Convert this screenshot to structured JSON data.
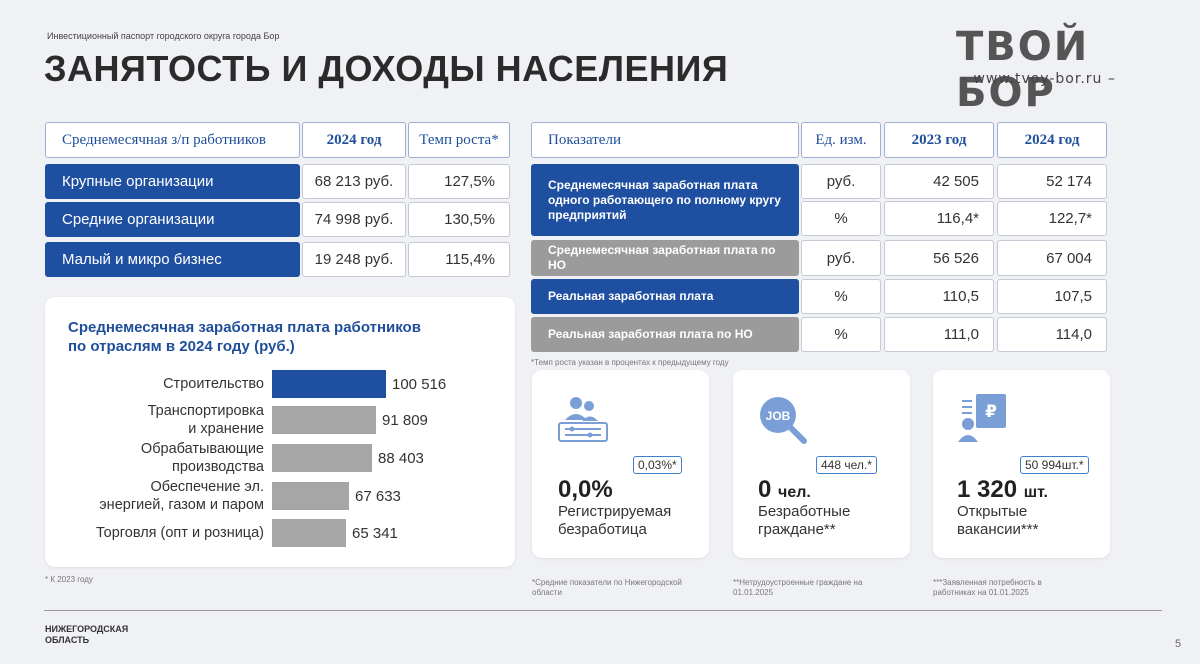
{
  "header": {
    "subtitle": "Инвестиционный паспорт городского округа города Бор",
    "title": "ЗАНЯТОСТЬ И ДОХОДЫ НАСЕЛЕНИЯ",
    "logo_text": "ТВОЙ БОР",
    "logo_url": "– www.tvoy-bor.ru –"
  },
  "salary_table": {
    "headers": [
      "Среднемесячная з/п работников",
      "2024 год",
      "Темп роста*"
    ],
    "rows": [
      {
        "label": "Крупные организации",
        "salary": "68 213 руб.",
        "growth": "127,5%"
      },
      {
        "label": "Средние организации",
        "salary": "74 998 руб.",
        "growth": "130,5%"
      },
      {
        "label": "Малый и микро бизнес",
        "salary": "19 248 руб.",
        "growth": "115,4%"
      }
    ]
  },
  "indicators_table": {
    "headers": [
      "Показатели",
      "Ед. изм.",
      "2023 год",
      "2024 год"
    ],
    "group1_label": "Среднемесячная заработная плата одного работающего по полному кругу предприятий",
    "group1_rows": [
      {
        "unit": "руб.",
        "y2023": "42 505",
        "y2024": "52 174"
      },
      {
        "unit": "%",
        "y2023": "116,4*",
        "y2024": "122,7*"
      }
    ],
    "rows": [
      {
        "label": "Среднемесячная заработная плата по НО",
        "unit": "руб.",
        "y2023": "56 526",
        "y2024": "67 004"
      },
      {
        "label": "Реальная заработная плата",
        "unit": "%",
        "y2023": "110,5",
        "y2024": "107,5"
      },
      {
        "label": "Реальная заработная плата по НО",
        "unit": "%",
        "y2023": "111,0",
        "y2024": "114,0"
      }
    ],
    "footnote": "*Темп роста указан в процентах к предыдущему году"
  },
  "chart_data": {
    "type": "bar",
    "title": "Среднемесячная заработная плата работников по отраслям в 2024 году (руб.)",
    "categories": [
      "Строительство",
      "Транспортировка и хранение",
      "Обрабатывающие производства",
      "Обеспечение эл. энергией, газом и паром",
      "Торговля (опт и розница)"
    ],
    "category_lines": [
      [
        "Строительство"
      ],
      [
        "Транспортировка",
        "и хранение"
      ],
      [
        "Обрабатывающие",
        "производства"
      ],
      [
        "Обеспечение эл.",
        "энергией, газом и паром"
      ],
      [
        "Торговля (опт и розница)"
      ]
    ],
    "values": [
      100516,
      91809,
      88403,
      67633,
      65341
    ],
    "value_labels": [
      "100 516",
      "91 809",
      "88 403",
      "67 633",
      "65 341"
    ],
    "colors": [
      "#1e4fa1",
      "#a6a6a6",
      "#a6a6a6",
      "#a6a6a6",
      "#a6a6a6"
    ],
    "orientation": "horizontal"
  },
  "chart_footnote": "* К 2023 году",
  "kpis": [
    {
      "icon": "people-settings-icon",
      "badge": "0,03%*",
      "value": "0,0%",
      "unit": "",
      "label1": "Регистрируемая",
      "label2": "безработица",
      "footnote1": "*Средние показатели по Нижегородской",
      "footnote2": "области"
    },
    {
      "icon": "job-search-icon",
      "badge": "448 чел.*",
      "value": "0",
      "unit": "чел.",
      "label1": "Безработные",
      "label2": "граждане**",
      "footnote1": "**Нетрудоустроенные граждане на",
      "footnote2": "01.01.2025"
    },
    {
      "icon": "vacancy-document-icon",
      "badge": "50 994шт.*",
      "value": "1 320",
      "unit": "шт.",
      "label1": "Открытые",
      "label2": "вакансии***",
      "footnote1": "***Заявленная потребность в",
      "footnote2": "работниках на 01.01.2025"
    }
  ],
  "footer": {
    "region": "НИЖЕГОРОДСКАЯ ОБЛАСТЬ",
    "page": "5"
  },
  "colors": {
    "brand_blue": "#1e4fa1",
    "grey": "#9b9b9b",
    "accent_border": "#3f7fd0"
  }
}
